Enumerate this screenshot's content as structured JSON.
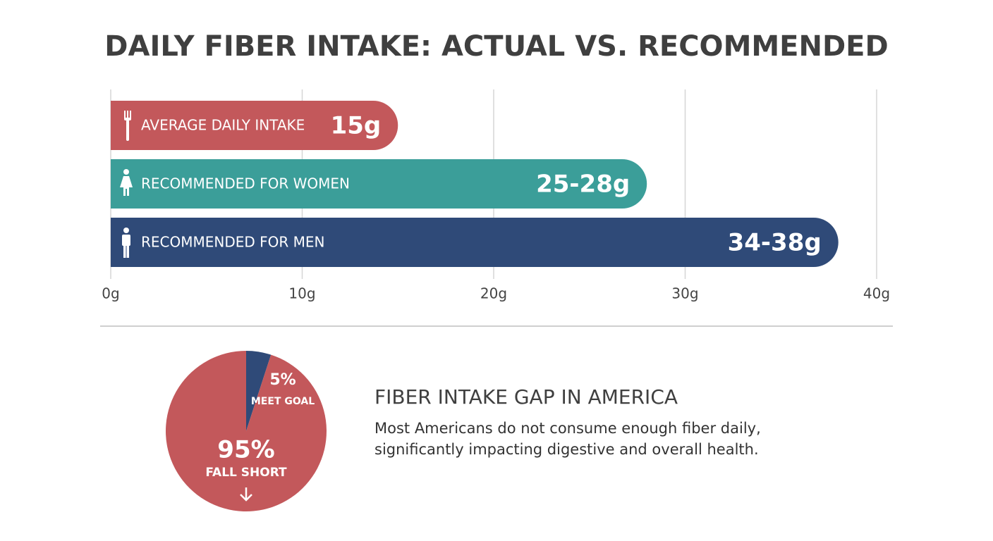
{
  "chart_data": [
    {
      "type": "hbar",
      "title": "DAILY FIBER INTAKE: ACTUAL VS. RECOMMENDED",
      "categories": [
        "AVERAGE DAILY INTAKE",
        "RECOMMENDED FOR WOMEN",
        "RECOMMENDED FOR MEN"
      ],
      "values": [
        15,
        28,
        38
      ],
      "value_labels": [
        "15g",
        "25-28g",
        "34-38g"
      ],
      "colors": [
        "#c3585b",
        "#3b9e99",
        "#2f4a78"
      ],
      "xlim": [
        0,
        40
      ],
      "xticks": [
        {
          "value": 0,
          "label": "0g"
        },
        {
          "value": 10,
          "label": "10g"
        },
        {
          "value": 20,
          "label": "20g"
        },
        {
          "value": 30,
          "label": "30g"
        },
        {
          "value": 40,
          "label": "40g"
        }
      ],
      "grid": true
    },
    {
      "type": "pie",
      "categories": [
        "MEET GOAL",
        "FALL SHORT"
      ],
      "values": [
        5,
        95
      ],
      "value_labels": [
        "5%",
        "95%"
      ],
      "colors": [
        "#2f4a78",
        "#c3585b"
      ]
    }
  ],
  "info": {
    "heading": "FIBER INTAKE GAP IN AMERICA",
    "body": [
      "Most Americans do not consume enough fiber daily,",
      "significantly impacting digestive and overall health."
    ]
  }
}
